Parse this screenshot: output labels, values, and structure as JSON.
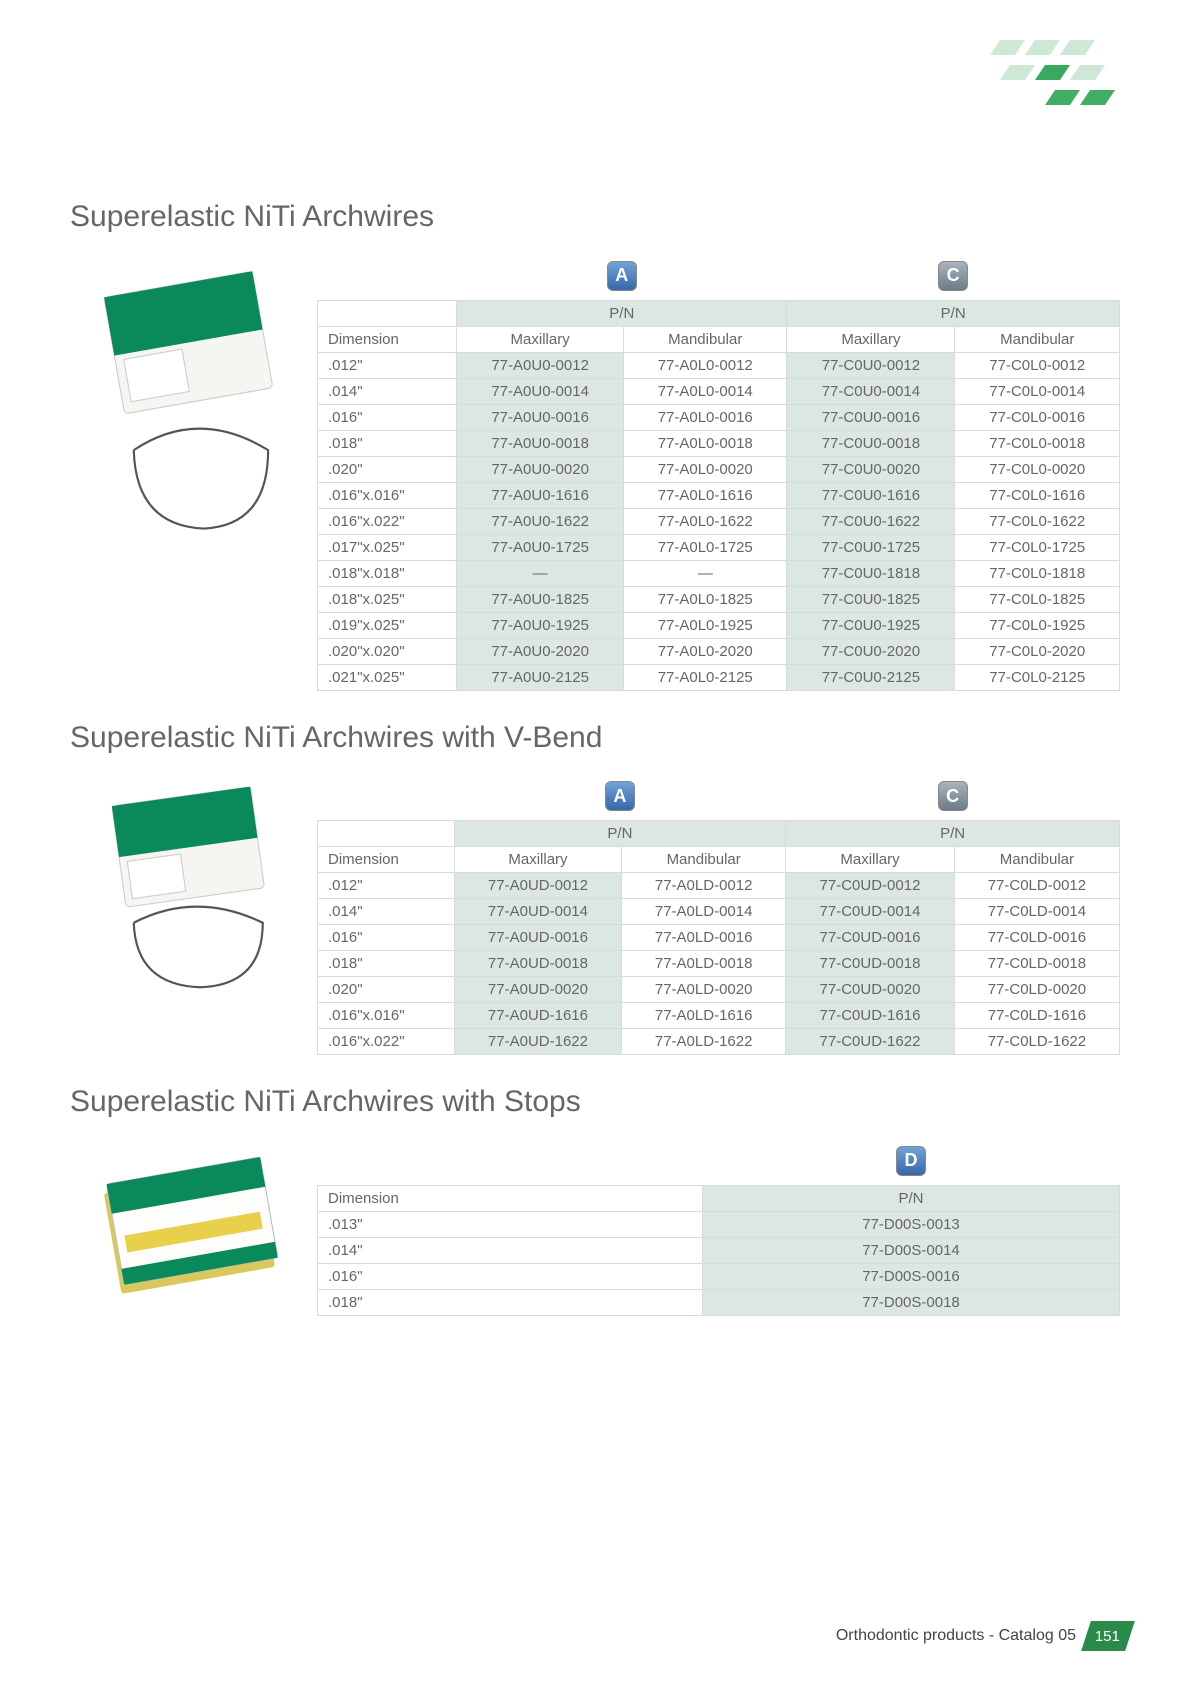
{
  "footer": {
    "text": "Orthodontic products - Catalog 05",
    "page": "151"
  },
  "badges": {
    "A": "A",
    "C": "C",
    "D": "D"
  },
  "headers": {
    "pn": "P/N",
    "dim": "Dimension",
    "max": "Maxillary",
    "mand": "Mandibular"
  },
  "section1": {
    "title": "Superelastic NiTi Archwires",
    "rows": [
      {
        "dim": ".012\"",
        "a_max": "77-A0U0-0012",
        "a_mand": "77-A0L0-0012",
        "c_max": "77-C0U0-0012",
        "c_mand": "77-C0L0-0012"
      },
      {
        "dim": ".014\"",
        "a_max": "77-A0U0-0014",
        "a_mand": "77-A0L0-0014",
        "c_max": "77-C0U0-0014",
        "c_mand": "77-C0L0-0014"
      },
      {
        "dim": ".016\"",
        "a_max": "77-A0U0-0016",
        "a_mand": "77-A0L0-0016",
        "c_max": "77-C0U0-0016",
        "c_mand": "77-C0L0-0016"
      },
      {
        "dim": ".018\"",
        "a_max": "77-A0U0-0018",
        "a_mand": "77-A0L0-0018",
        "c_max": "77-C0U0-0018",
        "c_mand": "77-C0L0-0018"
      },
      {
        "dim": ".020\"",
        "a_max": "77-A0U0-0020",
        "a_mand": "77-A0L0-0020",
        "c_max": "77-C0U0-0020",
        "c_mand": "77-C0L0-0020"
      },
      {
        "dim": ".016\"x.016\"",
        "a_max": "77-A0U0-1616",
        "a_mand": "77-A0L0-1616",
        "c_max": "77-C0U0-1616",
        "c_mand": "77-C0L0-1616"
      },
      {
        "dim": ".016\"x.022\"",
        "a_max": "77-A0U0-1622",
        "a_mand": "77-A0L0-1622",
        "c_max": "77-C0U0-1622",
        "c_mand": "77-C0L0-1622"
      },
      {
        "dim": ".017\"x.025\"",
        "a_max": "77-A0U0-1725",
        "a_mand": "77-A0L0-1725",
        "c_max": "77-C0U0-1725",
        "c_mand": "77-C0L0-1725"
      },
      {
        "dim": ".018\"x.018\"",
        "a_max": "—",
        "a_mand": "—",
        "c_max": "77-C0U0-1818",
        "c_mand": "77-C0L0-1818"
      },
      {
        "dim": ".018\"x.025\"",
        "a_max": "77-A0U0-1825",
        "a_mand": "77-A0L0-1825",
        "c_max": "77-C0U0-1825",
        "c_mand": "77-C0L0-1825"
      },
      {
        "dim": ".019\"x.025\"",
        "a_max": "77-A0U0-1925",
        "a_mand": "77-A0L0-1925",
        "c_max": "77-C0U0-1925",
        "c_mand": "77-C0L0-1925"
      },
      {
        "dim": ".020\"x.020\"",
        "a_max": "77-A0U0-2020",
        "a_mand": "77-A0L0-2020",
        "c_max": "77-C0U0-2020",
        "c_mand": "77-C0L0-2020"
      },
      {
        "dim": ".021\"x.025\"",
        "a_max": "77-A0U0-2125",
        "a_mand": "77-A0L0-2125",
        "c_max": "77-C0U0-2125",
        "c_mand": "77-C0L0-2125"
      }
    ]
  },
  "section2": {
    "title": "Superelastic NiTi Archwires with V-Bend",
    "rows": [
      {
        "dim": ".012\"",
        "a_max": "77-A0UD-0012",
        "a_mand": "77-A0LD-0012",
        "c_max": "77-C0UD-0012",
        "c_mand": "77-C0LD-0012"
      },
      {
        "dim": ".014\"",
        "a_max": "77-A0UD-0014",
        "a_mand": "77-A0LD-0014",
        "c_max": "77-C0UD-0014",
        "c_mand": "77-C0LD-0014"
      },
      {
        "dim": ".016\"",
        "a_max": "77-A0UD-0016",
        "a_mand": "77-A0LD-0016",
        "c_max": "77-C0UD-0016",
        "c_mand": "77-C0LD-0016"
      },
      {
        "dim": ".018\"",
        "a_max": "77-A0UD-0018",
        "a_mand": "77-A0LD-0018",
        "c_max": "77-C0UD-0018",
        "c_mand": "77-C0LD-0018"
      },
      {
        "dim": ".020\"",
        "a_max": "77-A0UD-0020",
        "a_mand": "77-A0LD-0020",
        "c_max": "77-C0UD-0020",
        "c_mand": "77-C0LD-0020"
      },
      {
        "dim": ".016\"x.016\"",
        "a_max": "77-A0UD-1616",
        "a_mand": "77-A0LD-1616",
        "c_max": "77-C0UD-1616",
        "c_mand": "77-C0LD-1616"
      },
      {
        "dim": ".016\"x.022\"",
        "a_max": "77-A0UD-1622",
        "a_mand": "77-A0LD-1622",
        "c_max": "77-C0UD-1622",
        "c_mand": "77-C0LD-1622"
      }
    ]
  },
  "section3": {
    "title": "Superelastic NiTi Archwires with Stops",
    "rows": [
      {
        "dim": ".013\"",
        "pn": "77-D00S-0013"
      },
      {
        "dim": ".014\"",
        "pn": "77-D00S-0014"
      },
      {
        "dim": ".016\"",
        "pn": "77-D00S-0016"
      },
      {
        "dim": ".018\"",
        "pn": "77-D00S-0018"
      }
    ]
  },
  "styling": {
    "highlight_bg": "#dde7e2",
    "border_color": "#d8dcd9",
    "title_color": "#666666",
    "text_color": "#666666",
    "page_bg": "#ffffff",
    "footer_green": "#2a8a4a",
    "decoration_green": "#1fa04a",
    "font_size_table": 15,
    "font_size_title": 30
  }
}
